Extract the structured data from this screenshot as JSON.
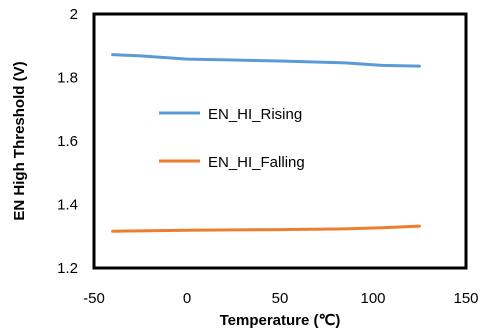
{
  "chart_data": {
    "type": "line",
    "title": "",
    "xlabel": "Temperature (℃)",
    "ylabel": "EN High Threshold (V)",
    "xlim": [
      -50,
      150
    ],
    "ylim": [
      1.2,
      2.0
    ],
    "x_ticks": [
      "-50",
      "0",
      "50",
      "100",
      "150"
    ],
    "y_ticks": [
      "1.2",
      "1.4",
      "1.6",
      "1.8",
      "2"
    ],
    "x_tick_values": [
      -50,
      0,
      50,
      100,
      150
    ],
    "y_tick_values": [
      1.2,
      1.4,
      1.6,
      1.8,
      2.0
    ],
    "grid": false,
    "legend_position": "inside-center-left",
    "series": [
      {
        "name": "EN_HI_Rising",
        "color": "#5B9BD5",
        "x": [
          -40,
          -25,
          0,
          25,
          50,
          85,
          105,
          125
        ],
        "y": [
          1.872,
          1.868,
          1.858,
          1.855,
          1.852,
          1.846,
          1.838,
          1.836
        ]
      },
      {
        "name": "EN_HI_Falling",
        "color": "#ED7D31",
        "x": [
          -40,
          -25,
          0,
          25,
          50,
          85,
          105,
          125
        ],
        "y": [
          1.316,
          1.317,
          1.319,
          1.32,
          1.321,
          1.323,
          1.327,
          1.332
        ]
      }
    ]
  }
}
